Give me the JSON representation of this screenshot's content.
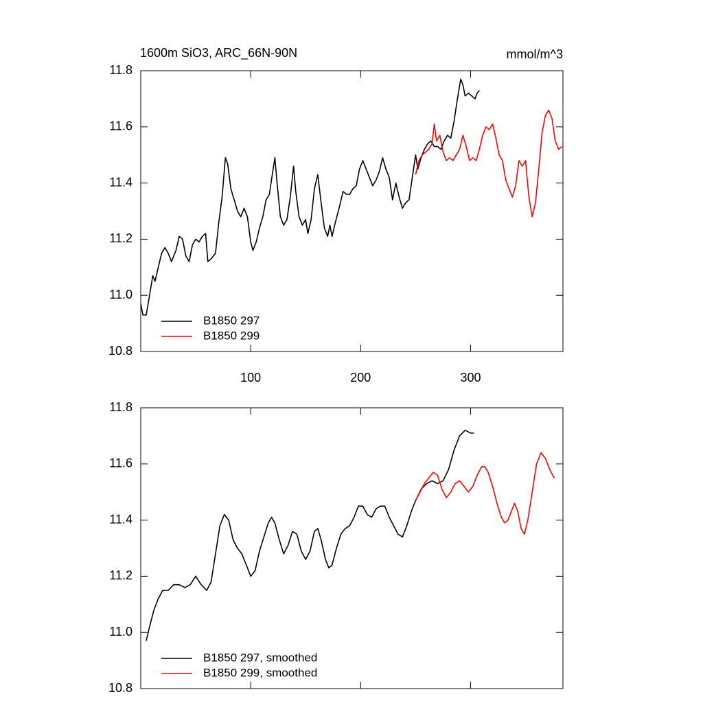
{
  "chart_data": [
    {
      "type": "line",
      "title": "1600m SiO3, ARC_66N-90N",
      "units": "mmol/m^3",
      "xlim": [
        0,
        384
      ],
      "xticks": [
        100,
        200,
        300
      ],
      "show_xtick_labels": true,
      "ylim": [
        10.8,
        11.8
      ],
      "yticks": [
        10.8,
        {
          "value": 11,
          "label": "11.0"
        },
        11.2,
        11.4,
        11.6,
        11.8
      ],
      "legend": "lower left",
      "series": [
        {
          "name": "B1850 297",
          "color": "#000000",
          "x": [
            0,
            2,
            5,
            8,
            11,
            13,
            16,
            19,
            22,
            25,
            28,
            32,
            35,
            38,
            41,
            44,
            47,
            50,
            53,
            56,
            59,
            61,
            64,
            68,
            71,
            74,
            77,
            79,
            82,
            85,
            88,
            91,
            94,
            97,
            100,
            102,
            105,
            108,
            111,
            114,
            117,
            120,
            122,
            124,
            127,
            130,
            133,
            136,
            139,
            141,
            144,
            147,
            150,
            152,
            155,
            158,
            161,
            164,
            167,
            170,
            172,
            174,
            177,
            181,
            184,
            187,
            190,
            193,
            196,
            199,
            202,
            205,
            208,
            211,
            214,
            217,
            220,
            223,
            226,
            229,
            232,
            235,
            238,
            241,
            244,
            247,
            250,
            252,
            255,
            258,
            261,
            264,
            267,
            270,
            273,
            276,
            279,
            282,
            285,
            288,
            291,
            293,
            295,
            298,
            301,
            304,
            306,
            308
          ],
          "values": [
            10.97,
            10.93,
            10.93,
            11.0,
            11.07,
            11.05,
            11.1,
            11.15,
            11.17,
            11.15,
            11.12,
            11.16,
            11.21,
            11.2,
            11.14,
            11.12,
            11.18,
            11.2,
            11.19,
            11.21,
            11.22,
            11.12,
            11.13,
            11.15,
            11.26,
            11.35,
            11.49,
            11.47,
            11.38,
            11.34,
            11.3,
            11.28,
            11.31,
            11.28,
            11.19,
            11.16,
            11.19,
            11.24,
            11.28,
            11.34,
            11.36,
            11.44,
            11.49,
            11.4,
            11.28,
            11.25,
            11.27,
            11.35,
            11.46,
            11.37,
            11.28,
            11.25,
            11.27,
            11.22,
            11.27,
            11.38,
            11.43,
            11.33,
            11.24,
            11.21,
            11.25,
            11.21,
            11.26,
            11.32,
            11.37,
            11.36,
            11.36,
            11.38,
            11.39,
            11.45,
            11.48,
            11.45,
            11.42,
            11.39,
            11.41,
            11.44,
            11.49,
            11.45,
            11.42,
            11.34,
            11.4,
            11.35,
            11.31,
            11.33,
            11.34,
            11.42,
            11.5,
            11.45,
            11.49,
            11.52,
            11.54,
            11.55,
            11.53,
            11.53,
            11.52,
            11.55,
            11.57,
            11.56,
            11.62,
            11.7,
            11.77,
            11.75,
            11.71,
            11.72,
            11.71,
            11.7,
            11.72,
            11.73
          ]
        },
        {
          "name": "B1850 299",
          "color": "#ff0000",
          "x": [
            250,
            253,
            256,
            259,
            262,
            265,
            267,
            269,
            272,
            275,
            278,
            281,
            284,
            287,
            290,
            293,
            296,
            299,
            302,
            305,
            308,
            311,
            314,
            317,
            320,
            323,
            326,
            329,
            332,
            335,
            338,
            341,
            344,
            347,
            350,
            353,
            356,
            359,
            362,
            365,
            368,
            371,
            374,
            377,
            380,
            383
          ],
          "values": [
            11.43,
            11.48,
            11.5,
            11.51,
            11.52,
            11.54,
            11.61,
            11.55,
            11.57,
            11.51,
            11.48,
            11.49,
            11.48,
            11.5,
            11.52,
            11.57,
            11.53,
            11.48,
            11.49,
            11.48,
            11.52,
            11.57,
            11.6,
            11.59,
            11.61,
            11.56,
            11.5,
            11.48,
            11.41,
            11.38,
            11.35,
            11.39,
            11.48,
            11.46,
            11.48,
            11.35,
            11.28,
            11.33,
            11.45,
            11.58,
            11.64,
            11.66,
            11.63,
            11.55,
            11.52,
            11.53
          ]
        }
      ]
    },
    {
      "type": "line",
      "xlim": [
        0,
        384
      ],
      "xticks": [
        100,
        200,
        300
      ],
      "show_xtick_labels": false,
      "ylim": [
        10.8,
        11.8
      ],
      "yticks": [
        10.8,
        {
          "value": 11,
          "label": "11.0"
        },
        11.2,
        11.4,
        11.6,
        11.8
      ],
      "legend": "lower left",
      "series": [
        {
          "name": "B1850 297, smoothed",
          "color": "#000000",
          "x": [
            5,
            8,
            12,
            16,
            20,
            25,
            30,
            35,
            40,
            45,
            50,
            55,
            60,
            64,
            68,
            72,
            76,
            80,
            84,
            88,
            92,
            96,
            100,
            104,
            108,
            112,
            116,
            119,
            122,
            126,
            130,
            134,
            138,
            142,
            146,
            150,
            154,
            158,
            161,
            164,
            168,
            171,
            174,
            178,
            182,
            186,
            190,
            194,
            198,
            202,
            206,
            210,
            214,
            218,
            222,
            226,
            230,
            234,
            238,
            242,
            246,
            250,
            255,
            260,
            265,
            270,
            275,
            280,
            285,
            290,
            295,
            300,
            303
          ],
          "values": [
            10.97,
            11.02,
            11.08,
            11.12,
            11.15,
            11.15,
            11.17,
            11.17,
            11.16,
            11.17,
            11.2,
            11.17,
            11.15,
            11.18,
            11.28,
            11.38,
            11.42,
            11.4,
            11.33,
            11.3,
            11.28,
            11.24,
            11.2,
            11.22,
            11.29,
            11.34,
            11.39,
            11.41,
            11.39,
            11.33,
            11.28,
            11.31,
            11.36,
            11.35,
            11.29,
            11.26,
            11.29,
            11.36,
            11.37,
            11.33,
            11.26,
            11.23,
            11.24,
            11.3,
            11.35,
            11.37,
            11.38,
            11.41,
            11.45,
            11.45,
            11.42,
            11.41,
            11.44,
            11.45,
            11.45,
            11.41,
            11.38,
            11.35,
            11.34,
            11.38,
            11.43,
            11.47,
            11.51,
            11.53,
            11.54,
            11.53,
            11.54,
            11.58,
            11.65,
            11.7,
            11.72,
            11.71,
            11.71
          ]
        },
        {
          "name": "B1850 299, smoothed",
          "color": "#ff0000",
          "x": [
            250,
            254,
            258,
            262,
            266,
            270,
            274,
            278,
            282,
            286,
            290,
            294,
            298,
            302,
            306,
            310,
            313,
            316,
            320,
            324,
            328,
            331,
            334,
            337,
            340,
            343,
            346,
            349,
            352,
            356,
            360,
            364,
            368,
            372,
            376
          ],
          "values": [
            11.47,
            11.5,
            11.53,
            11.55,
            11.57,
            11.56,
            11.51,
            11.48,
            11.5,
            11.53,
            11.54,
            11.52,
            11.5,
            11.52,
            11.56,
            11.59,
            11.59,
            11.57,
            11.52,
            11.46,
            11.41,
            11.39,
            11.4,
            11.43,
            11.46,
            11.43,
            11.37,
            11.35,
            11.4,
            11.5,
            11.6,
            11.64,
            11.62,
            11.58,
            11.55
          ]
        }
      ]
    }
  ]
}
